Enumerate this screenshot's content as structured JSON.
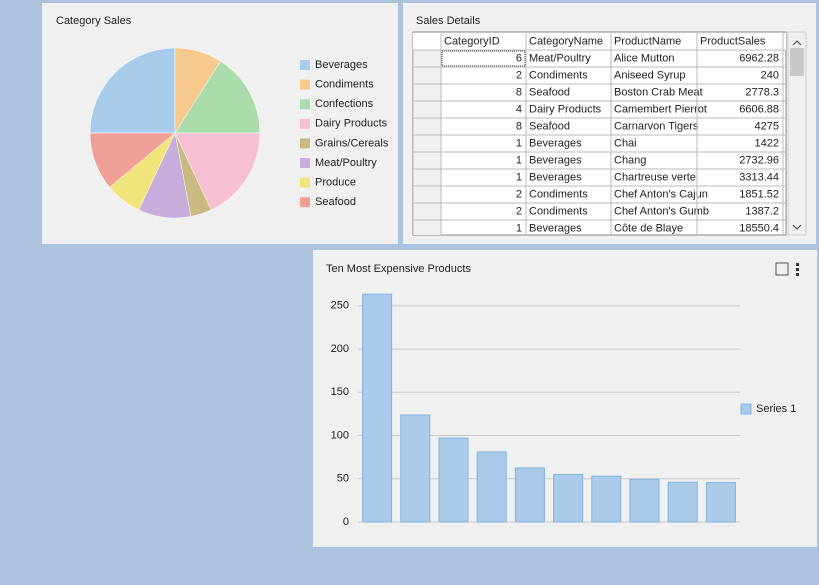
{
  "chart_data": [
    {
      "type": "pie",
      "title": "Category Sales",
      "categories": [
        "Beverages",
        "Condiments",
        "Confections",
        "Dairy Products",
        "Grains/Cereals",
        "Meat/Poultry",
        "Produce",
        "Seafood"
      ],
      "values": [
        25,
        9,
        16,
        18,
        4,
        10,
        7,
        11
      ],
      "colors": [
        "#a8cbea",
        "#f7c98d",
        "#aadbaa",
        "#f6bfd4",
        "#cbb982",
        "#c6addb",
        "#f1e47a",
        "#f0a096"
      ]
    },
    {
      "type": "bar",
      "title": "Ten Most Expensive Products",
      "series": [
        {
          "name": "Series 1",
          "color": "#a9cbe9",
          "values": [
            263.5,
            123.79,
            97,
            81,
            62.5,
            55,
            53,
            49.3,
            46,
            45.6
          ]
        }
      ],
      "ylim": [
        0,
        266
      ],
      "yticks": [
        0,
        50,
        100,
        150,
        200,
        250
      ],
      "grid": true
    }
  ],
  "table": {
    "title": "Sales Details",
    "columns": [
      "CategoryID",
      "CategoryName",
      "ProductName",
      "ProductSales"
    ],
    "rows": [
      [
        6,
        "Meat/Poultry",
        "Alice Mutton",
        6962.28
      ],
      [
        2,
        "Condiments",
        "Aniseed Syrup",
        240
      ],
      [
        8,
        "Seafood",
        "Boston Crab Meat",
        2778.3
      ],
      [
        4,
        "Dairy Products",
        "Camembert Pierrot",
        6606.88
      ],
      [
        8,
        "Seafood",
        "Carnarvon Tigers",
        4275
      ],
      [
        1,
        "Beverages",
        "Chai",
        1422
      ],
      [
        1,
        "Beverages",
        "Chang",
        2732.96
      ],
      [
        1,
        "Beverages",
        "Chartreuse verte",
        3313.44
      ],
      [
        2,
        "Condiments",
        "Chef Anton's Cajun",
        1851.52
      ],
      [
        2,
        "Condiments",
        "Chef Anton's Gumb",
        1387.2
      ],
      [
        1,
        "Beverages",
        "Côte de Blaye",
        18550.4
      ]
    ]
  }
}
